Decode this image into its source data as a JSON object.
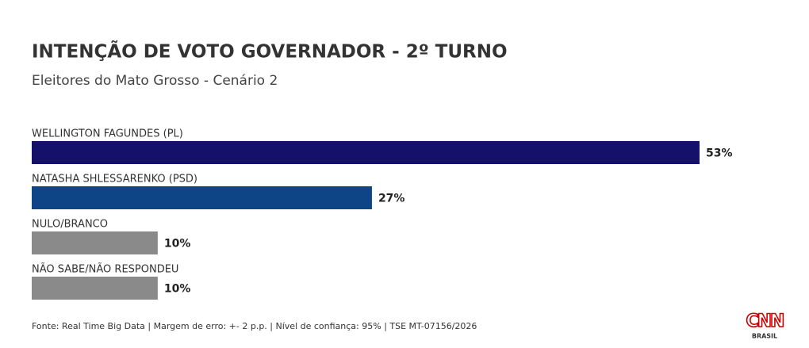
{
  "chart_data": {
    "type": "bar",
    "orientation": "horizontal",
    "title": "INTENÇÃO DE VOTO GOVERNADOR - 2º TURNO",
    "subtitle": "Eleitores do Mato Grosso - Cenário 2",
    "categories": [
      "WELLINGTON FAGUNDES (PL)",
      "NATASHA SHLESSARENKO (PSD)",
      "NULO/BRANCO",
      "NÃO SABE/NÃO RESPONDEU"
    ],
    "values": [
      53,
      27,
      10,
      10
    ],
    "value_labels": [
      "53%",
      "27%",
      "10%",
      "10%"
    ],
    "colors": [
      "#15116b",
      "#0d4587",
      "#8a8a8a",
      "#8a8a8a"
    ],
    "source": "Fonte: Real Time Big Data | Margem de erro: +- 2 p.p. | Nível de confiança: 95% | TSE MT-07156/2026",
    "logo": {
      "name": "CNN",
      "sub": "BRASIL"
    }
  }
}
